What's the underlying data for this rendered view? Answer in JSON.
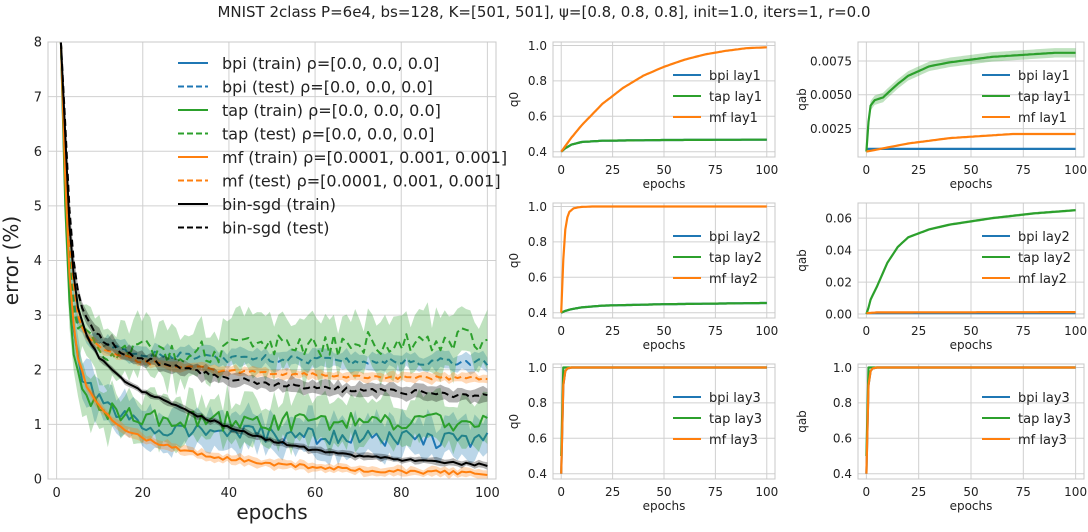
{
  "figure": {
    "suptitle": "MNIST 2class P=6e4, bs=128, K=[501, 501], ψ=[0.8, 0.8, 0.8], init=1.0, iters=1, r=0.0"
  },
  "colors": {
    "bpi": "#1f77b4",
    "tap": "#2ca02c",
    "mf": "#ff7f0e",
    "sgd": "#000000",
    "grid": "#d0d0d0",
    "spine": "#c8c8c8"
  },
  "chart_data": [
    {
      "id": "main",
      "type": "line",
      "xlabel": "epochs",
      "ylabel": "error (%)",
      "xlim": [
        -2,
        102
      ],
      "ylim": [
        0,
        8
      ],
      "xticks": [
        0,
        20,
        40,
        60,
        80,
        100
      ],
      "yticks": [
        0,
        1,
        2,
        3,
        4,
        5,
        6,
        7,
        8
      ],
      "grid": true,
      "legend_position": "top-right",
      "series": [
        {
          "name": "bpi (train) ρ=[0.0, 0.0, 0.0]",
          "color_key": "bpi",
          "dashed": false,
          "x": [
            1,
            2,
            3,
            4,
            5,
            7,
            10,
            15,
            20,
            30,
            40,
            50,
            60,
            70,
            80,
            90,
            100
          ],
          "y": [
            8,
            5.2,
            3.5,
            2.6,
            2.1,
            1.7,
            1.4,
            1.15,
            0.95,
            0.9,
            0.85,
            0.8,
            0.78,
            0.75,
            0.73,
            0.72,
            0.7
          ],
          "band": 0.35
        },
        {
          "name": "bpi (test) ρ=[0.0, 0.0, 0.0]",
          "color_key": "bpi",
          "dashed": true,
          "x": [
            1,
            2,
            3,
            4,
            5,
            7,
            10,
            15,
            20,
            30,
            40,
            50,
            60,
            70,
            80,
            90,
            100
          ],
          "y": [
            8,
            5.8,
            4.1,
            3.3,
            2.9,
            2.6,
            2.45,
            2.35,
            2.3,
            2.25,
            2.2,
            2.2,
            2.18,
            2.15,
            2.15,
            2.15,
            2.15
          ],
          "band": 0.15
        },
        {
          "name": "tap (train) ρ=[0.0, 0.0, 0.0]",
          "color_key": "tap",
          "dashed": false,
          "x": [
            1,
            2,
            3,
            4,
            5,
            7,
            10,
            15,
            20,
            30,
            40,
            50,
            60,
            70,
            80,
            90,
            100
          ],
          "y": [
            8,
            5.0,
            3.2,
            2.4,
            1.9,
            1.55,
            1.3,
            1.15,
            1.1,
            1.08,
            1.05,
            1.05,
            1.05,
            1.05,
            1.05,
            1.05,
            1.05
          ],
          "band": 0.4
        },
        {
          "name": "tap (test) ρ=[0.0, 0.0, 0.0]",
          "color_key": "tap",
          "dashed": true,
          "x": [
            1,
            2,
            3,
            4,
            5,
            7,
            10,
            15,
            20,
            30,
            40,
            50,
            60,
            70,
            80,
            90,
            100
          ],
          "y": [
            8,
            5.6,
            4.0,
            3.2,
            2.8,
            2.5,
            2.4,
            2.35,
            2.35,
            2.35,
            2.35,
            2.4,
            2.45,
            2.5,
            2.5,
            2.55,
            2.55
          ],
          "band": 0.5
        },
        {
          "name": "mf (train) ρ=[0.0001, 0.001, 0.001]",
          "color_key": "mf",
          "dashed": false,
          "x": [
            1,
            2,
            3,
            4,
            5,
            7,
            10,
            15,
            20,
            30,
            40,
            50,
            60,
            70,
            80,
            90,
            100
          ],
          "y": [
            8,
            5.5,
            3.7,
            2.8,
            2.2,
            1.7,
            1.3,
            0.95,
            0.75,
            0.5,
            0.37,
            0.28,
            0.22,
            0.17,
            0.14,
            0.12,
            0.1
          ],
          "band": 0.08
        },
        {
          "name": "mf (test) ρ=[0.0001, 0.001, 0.001]",
          "color_key": "mf",
          "dashed": true,
          "x": [
            1,
            2,
            3,
            4,
            5,
            7,
            10,
            15,
            20,
            30,
            40,
            50,
            60,
            70,
            80,
            90,
            100
          ],
          "y": [
            8,
            6.0,
            4.4,
            3.5,
            3.0,
            2.6,
            2.4,
            2.25,
            2.15,
            2.05,
            1.98,
            1.93,
            1.9,
            1.88,
            1.86,
            1.85,
            1.85
          ],
          "band": 0.08
        },
        {
          "name": "bin-sgd (train)",
          "color_key": "sgd",
          "dashed": false,
          "x": [
            1,
            2,
            3,
            4,
            5,
            7,
            10,
            15,
            20,
            30,
            40,
            50,
            60,
            70,
            80,
            90,
            100
          ],
          "y": [
            8,
            6.3,
            4.6,
            3.7,
            3.1,
            2.6,
            2.2,
            1.85,
            1.6,
            1.25,
            0.95,
            0.7,
            0.52,
            0.42,
            0.36,
            0.3,
            0.25
          ],
          "band": 0.06
        },
        {
          "name": "bin-sgd (test)",
          "color_key": "sgd",
          "dashed": true,
          "x": [
            1,
            2,
            3,
            4,
            5,
            7,
            10,
            15,
            20,
            30,
            40,
            50,
            60,
            70,
            80,
            90,
            100
          ],
          "y": [
            8,
            6.5,
            4.9,
            4.0,
            3.4,
            2.9,
            2.6,
            2.35,
            2.2,
            2.0,
            1.85,
            1.75,
            1.68,
            1.62,
            1.6,
            1.55,
            1.52
          ],
          "band": 0.12
        }
      ]
    },
    {
      "id": "q0_lay1",
      "type": "line",
      "xlabel": "epochs",
      "ylabel": "q0",
      "xlim": [
        -4,
        104
      ],
      "ylim": [
        0.37,
        1.02
      ],
      "xticks": [
        0,
        25,
        50,
        75,
        100
      ],
      "yticks": [
        0.4,
        0.6,
        0.8,
        1.0
      ],
      "ytick_labels": [
        "0.4",
        "0.6",
        "0.8",
        "1.0"
      ],
      "grid": true,
      "legend_position": "center-right",
      "series": [
        {
          "name": "bpi lay1",
          "color_key": "bpi",
          "x": [
            0,
            2,
            5,
            10,
            20,
            50,
            100
          ],
          "y": [
            0.4,
            0.42,
            0.44,
            0.455,
            0.462,
            0.466,
            0.468
          ]
        },
        {
          "name": "tap lay1",
          "color_key": "tap",
          "x": [
            0,
            2,
            5,
            10,
            20,
            50,
            100
          ],
          "y": [
            0.4,
            0.42,
            0.44,
            0.455,
            0.462,
            0.466,
            0.468
          ]
        },
        {
          "name": "mf lay1",
          "color_key": "mf",
          "x": [
            0,
            5,
            10,
            20,
            30,
            40,
            50,
            60,
            70,
            80,
            90,
            100
          ],
          "y": [
            0.4,
            0.48,
            0.55,
            0.67,
            0.76,
            0.83,
            0.88,
            0.92,
            0.95,
            0.97,
            0.985,
            0.99
          ]
        }
      ]
    },
    {
      "id": "qab_lay1",
      "type": "line",
      "xlabel": "epochs",
      "ylabel": "qab",
      "xlim": [
        -4,
        104
      ],
      "ylim": [
        0.0004,
        0.0089
      ],
      "xticks": [
        0,
        25,
        50,
        75,
        100
      ],
      "yticks": [
        0.0025,
        0.005,
        0.0075
      ],
      "ytick_labels": [
        "0.0025",
        "0.0050",
        "0.0075"
      ],
      "grid": true,
      "legend_position": "center-right",
      "series": [
        {
          "name": "bpi lay1",
          "color_key": "bpi",
          "x": [
            0,
            100
          ],
          "y": [
            0.001,
            0.001
          ]
        },
        {
          "name": "tap lay1",
          "color_key": "tap",
          "x": [
            0,
            1,
            2,
            4,
            6,
            8,
            10,
            15,
            20,
            30,
            40,
            50,
            60,
            70,
            80,
            90,
            100
          ],
          "y": [
            0.0008,
            0.003,
            0.0042,
            0.0046,
            0.0047,
            0.0048,
            0.0051,
            0.0058,
            0.0064,
            0.0071,
            0.0074,
            0.0076,
            0.0078,
            0.0079,
            0.008,
            0.0081,
            0.0081
          ],
          "band": 0.00035
        },
        {
          "name": "mf lay1",
          "color_key": "mf",
          "x": [
            0,
            10,
            20,
            30,
            40,
            50,
            60,
            70,
            80,
            90,
            100
          ],
          "y": [
            0.0008,
            0.0011,
            0.0014,
            0.0016,
            0.0018,
            0.0019,
            0.002,
            0.0021,
            0.0021,
            0.0021,
            0.0021
          ]
        }
      ]
    },
    {
      "id": "q0_lay2",
      "type": "line",
      "xlabel": "epochs",
      "ylabel": "q0",
      "xlim": [
        -4,
        104
      ],
      "ylim": [
        0.37,
        1.02
      ],
      "xticks": [
        0,
        25,
        50,
        75,
        100
      ],
      "yticks": [
        0.4,
        0.6,
        0.8,
        1.0
      ],
      "ytick_labels": [
        "0.4",
        "0.6",
        "0.8",
        "1.0"
      ],
      "grid": true,
      "legend_position": "center-right",
      "series": [
        {
          "name": "bpi lay2",
          "color_key": "bpi",
          "x": [
            0,
            2,
            5,
            10,
            20,
            50,
            100
          ],
          "y": [
            0.4,
            0.41,
            0.42,
            0.43,
            0.44,
            0.448,
            0.455
          ]
        },
        {
          "name": "tap lay2",
          "color_key": "tap",
          "x": [
            0,
            2,
            5,
            10,
            20,
            50,
            100
          ],
          "y": [
            0.4,
            0.41,
            0.42,
            0.43,
            0.44,
            0.448,
            0.455
          ]
        },
        {
          "name": "mf lay2",
          "color_key": "mf",
          "x": [
            0,
            1,
            2,
            3,
            4,
            6,
            8,
            10,
            15,
            20,
            100
          ],
          "y": [
            0.4,
            0.7,
            0.87,
            0.94,
            0.97,
            0.99,
            0.995,
            0.998,
            1.0,
            1.0,
            1.0
          ]
        }
      ]
    },
    {
      "id": "qab_lay2",
      "type": "line",
      "xlabel": "epochs",
      "ylabel": "qab",
      "xlim": [
        -4,
        104
      ],
      "ylim": [
        -0.0025,
        0.0695
      ],
      "xticks": [
        0,
        25,
        50,
        75,
        100
      ],
      "yticks": [
        0.0,
        0.02,
        0.04,
        0.06
      ],
      "ytick_labels": [
        "0.00",
        "0.02",
        "0.04",
        "0.06"
      ],
      "grid": true,
      "legend_position": "center-right",
      "series": [
        {
          "name": "bpi lay2",
          "color_key": "bpi",
          "x": [
            0,
            100
          ],
          "y": [
            0.0005,
            0.0005
          ]
        },
        {
          "name": "tap lay2",
          "color_key": "tap",
          "x": [
            0,
            1,
            2,
            5,
            10,
            15,
            20,
            30,
            40,
            50,
            60,
            70,
            80,
            90,
            100
          ],
          "y": [
            0.0,
            0.004,
            0.009,
            0.017,
            0.032,
            0.042,
            0.048,
            0.053,
            0.056,
            0.058,
            0.06,
            0.0615,
            0.063,
            0.064,
            0.065
          ],
          "band": 0.0008
        },
        {
          "name": "mf lay2",
          "color_key": "mf",
          "x": [
            0,
            5,
            100
          ],
          "y": [
            0.0005,
            0.001,
            0.0012
          ]
        }
      ]
    },
    {
      "id": "q0_lay3",
      "type": "line",
      "xlabel": "epochs",
      "ylabel": "q0",
      "xlim": [
        -4,
        104
      ],
      "ylim": [
        0.37,
        1.02
      ],
      "xticks": [
        0,
        25,
        50,
        75,
        100
      ],
      "yticks": [
        0.4,
        0.6,
        0.8,
        1.0
      ],
      "ytick_labels": [
        "0.4",
        "0.6",
        "0.8",
        "1.0"
      ],
      "grid": true,
      "legend_position": "center-right",
      "series": [
        {
          "name": "bpi lay3",
          "color_key": "bpi",
          "x": [
            0,
            1,
            2,
            3,
            5,
            100
          ],
          "y": [
            0.4,
            0.9,
            0.98,
            0.995,
            1.0,
            1.0
          ]
        },
        {
          "name": "tap lay3",
          "color_key": "tap",
          "x": [
            0,
            0.5,
            1,
            2,
            100
          ],
          "y": [
            0.5,
            0.95,
            1.0,
            1.0,
            1.0
          ]
        },
        {
          "name": "mf lay3",
          "color_key": "mf",
          "x": [
            0,
            1,
            2,
            3,
            5,
            100
          ],
          "y": [
            0.4,
            0.9,
            0.98,
            0.995,
            1.0,
            1.0
          ]
        }
      ]
    },
    {
      "id": "qab_lay3",
      "type": "line",
      "xlabel": "epochs",
      "ylabel": "qab",
      "xlim": [
        -4,
        104
      ],
      "ylim": [
        0.37,
        1.02
      ],
      "xticks": [
        0,
        25,
        50,
        75,
        100
      ],
      "yticks": [
        0.4,
        0.6,
        0.8,
        1.0
      ],
      "ytick_labels": [
        "0.4",
        "0.6",
        "0.8",
        "1.0"
      ],
      "grid": true,
      "legend_position": "center-right",
      "series": [
        {
          "name": "bpi lay3",
          "color_key": "bpi",
          "x": [
            0,
            1,
            2,
            3,
            5,
            100
          ],
          "y": [
            0.4,
            0.9,
            0.98,
            0.995,
            1.0,
            1.0
          ]
        },
        {
          "name": "tap lay3",
          "color_key": "tap",
          "x": [
            0,
            0.5,
            1,
            2,
            100
          ],
          "y": [
            0.5,
            0.95,
            1.0,
            1.0,
            1.0
          ]
        },
        {
          "name": "mf lay3",
          "color_key": "mf",
          "x": [
            0,
            1,
            2,
            3,
            5,
            100
          ],
          "y": [
            0.4,
            0.9,
            0.98,
            0.995,
            1.0,
            1.0
          ]
        }
      ]
    }
  ]
}
